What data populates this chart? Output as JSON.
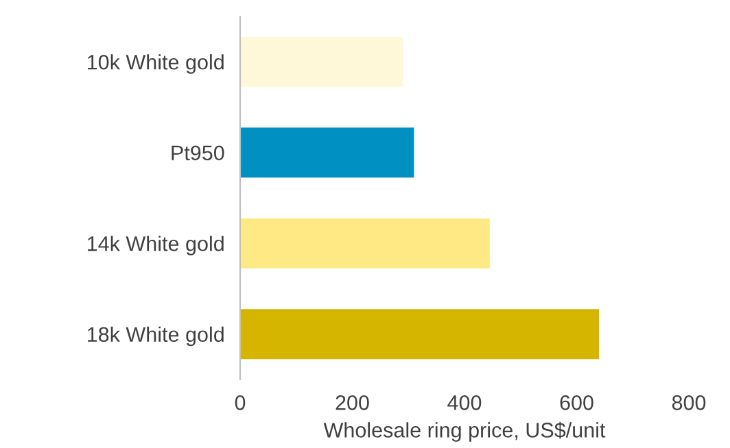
{
  "chart_data": {
    "type": "bar",
    "orientation": "horizontal",
    "categories": [
      "10k White gold",
      "Pt950",
      "14k White gold",
      "18k White gold"
    ],
    "values": [
      290,
      310,
      445,
      640
    ],
    "colors": [
      "#fef8d8",
      "#0091c2",
      "#fee985",
      "#d5b500"
    ],
    "xlabel": "Wholesale ring price, US$/unit",
    "xlim": [
      0,
      800
    ],
    "xticks": [
      0,
      200,
      400,
      600,
      800
    ],
    "grid": false,
    "legend": false
  }
}
